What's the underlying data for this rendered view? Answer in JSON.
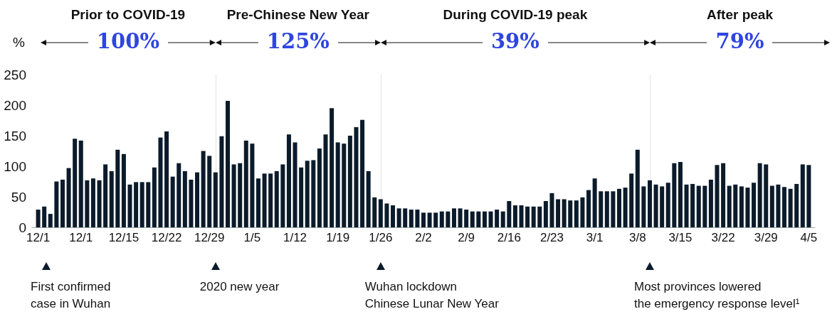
{
  "chart_data": {
    "type": "bar",
    "ylabel": "%",
    "color": "#0b1b2b",
    "grid": false,
    "ylim": [
      0,
      250
    ],
    "yticks": [
      0,
      50,
      100,
      150,
      200,
      250
    ],
    "xlim": [
      "2019-11-30",
      "2020-04-06"
    ],
    "xticks": [
      {
        "value": "2019-12-01",
        "label": "12/1"
      },
      {
        "value": "2019-12-08",
        "label": "12/1"
      },
      {
        "value": "2019-12-15",
        "label": "12/15"
      },
      {
        "value": "2019-12-22",
        "label": "12/22"
      },
      {
        "value": "2019-12-29",
        "label": "12/29"
      },
      {
        "value": "2020-01-05",
        "label": "1/5"
      },
      {
        "value": "2020-01-12",
        "label": "1/12"
      },
      {
        "value": "2020-01-19",
        "label": "1/19"
      },
      {
        "value": "2020-01-26",
        "label": "1/26"
      },
      {
        "value": "2020-02-02",
        "label": "2/2"
      },
      {
        "value": "2020-02-09",
        "label": "2/9"
      },
      {
        "value": "2020-02-16",
        "label": "2/16"
      },
      {
        "value": "2020-02-23",
        "label": "2/23"
      },
      {
        "value": "2020-03-01",
        "label": "3/1"
      },
      {
        "value": "2020-03-08",
        "label": "3/8"
      },
      {
        "value": "2020-03-15",
        "label": "3/15"
      },
      {
        "value": "2020-03-22",
        "label": "3/22"
      },
      {
        "value": "2020-03-29",
        "label": "3/29"
      },
      {
        "value": "2020-04-05",
        "label": "4/5"
      }
    ],
    "x": [
      "2019-12-01",
      "2019-12-02",
      "2019-12-03",
      "2019-12-04",
      "2019-12-05",
      "2019-12-06",
      "2019-12-07",
      "2019-12-08",
      "2019-12-09",
      "2019-12-10",
      "2019-12-11",
      "2019-12-12",
      "2019-12-13",
      "2019-12-14",
      "2019-12-15",
      "2019-12-16",
      "2019-12-17",
      "2019-12-18",
      "2019-12-19",
      "2019-12-20",
      "2019-12-21",
      "2019-12-22",
      "2019-12-23",
      "2019-12-24",
      "2019-12-25",
      "2019-12-26",
      "2019-12-27",
      "2019-12-28",
      "2019-12-29",
      "2019-12-30",
      "2019-12-31",
      "2020-01-01",
      "2020-01-02",
      "2020-01-03",
      "2020-01-04",
      "2020-01-05",
      "2020-01-06",
      "2020-01-07",
      "2020-01-08",
      "2020-01-09",
      "2020-01-10",
      "2020-01-11",
      "2020-01-12",
      "2020-01-13",
      "2020-01-14",
      "2020-01-15",
      "2020-01-16",
      "2020-01-17",
      "2020-01-18",
      "2020-01-19",
      "2020-01-20",
      "2020-01-21",
      "2020-01-22",
      "2020-01-23",
      "2020-01-24",
      "2020-01-25",
      "2020-01-26",
      "2020-01-27",
      "2020-01-28",
      "2020-01-29",
      "2020-01-30",
      "2020-01-31",
      "2020-02-01",
      "2020-02-02",
      "2020-02-03",
      "2020-02-04",
      "2020-02-05",
      "2020-02-06",
      "2020-02-07",
      "2020-02-08",
      "2020-02-09",
      "2020-02-10",
      "2020-02-11",
      "2020-02-12",
      "2020-02-13",
      "2020-02-14",
      "2020-02-15",
      "2020-02-16",
      "2020-02-17",
      "2020-02-18",
      "2020-02-19",
      "2020-02-20",
      "2020-02-21",
      "2020-02-22",
      "2020-02-23",
      "2020-02-24",
      "2020-02-25",
      "2020-02-26",
      "2020-02-27",
      "2020-02-28",
      "2020-02-29",
      "2020-03-01",
      "2020-03-02",
      "2020-03-03",
      "2020-03-04",
      "2020-03-05",
      "2020-03-06",
      "2020-03-07",
      "2020-03-08",
      "2020-03-09",
      "2020-03-10",
      "2020-03-11",
      "2020-03-12",
      "2020-03-13",
      "2020-03-14",
      "2020-03-15",
      "2020-03-16",
      "2020-03-17",
      "2020-03-18",
      "2020-03-19",
      "2020-03-20",
      "2020-03-21",
      "2020-03-22",
      "2020-03-23",
      "2020-03-24",
      "2020-03-25",
      "2020-03-26",
      "2020-03-27",
      "2020-03-28",
      "2020-03-29",
      "2020-03-30",
      "2020-03-31",
      "2020-04-01",
      "2020-04-02",
      "2020-04-03",
      "2020-04-04",
      "2020-04-05"
    ],
    "values": [
      29,
      34,
      22,
      75,
      78,
      97,
      145,
      142,
      77,
      80,
      77,
      103,
      92,
      127,
      120,
      70,
      74,
      74,
      74,
      98,
      147,
      157,
      83,
      105,
      92,
      78,
      90,
      125,
      117,
      90,
      149,
      207,
      103,
      105,
      142,
      137,
      80,
      88,
      88,
      92,
      103,
      152,
      139,
      98,
      109,
      110,
      129,
      152,
      195,
      139,
      137,
      150,
      164,
      176,
      92,
      49,
      46,
      39,
      36,
      31,
      31,
      29,
      29,
      24,
      24,
      24,
      26,
      26,
      31,
      31,
      29,
      26,
      26,
      26,
      26,
      29,
      26,
      43,
      36,
      36,
      34,
      34,
      34,
      43,
      56,
      46,
      46,
      44,
      44,
      49,
      61,
      80,
      59,
      59,
      59,
      63,
      65,
      88,
      127,
      67,
      77,
      70,
      67,
      73,
      105,
      107,
      70,
      71,
      68,
      68,
      78,
      102,
      105,
      68,
      70,
      67,
      65,
      73,
      105,
      103,
      68,
      70,
      66,
      63,
      71,
      103,
      102
    ],
    "ref_lines": [
      {
        "axis": "x",
        "value": "2019-12-30",
        "color": "#e2e2e2"
      },
      {
        "axis": "x",
        "value": "2020-01-26",
        "color": "#e2e2e2"
      },
      {
        "axis": "x",
        "value": "2020-03-10",
        "color": "#e2e2e2"
      }
    ],
    "annotations": [
      "Prior to COVID-19",
      "100%",
      "Pre-Chinese New Year",
      "125%",
      "During COVID-19 peak",
      "39%",
      "After peak",
      "79%",
      "First confirmed\ncase in Wuhan",
      "2020 new year",
      "Wuhan lockdown\nChinese Lunar New Year",
      "Most provinces lowered\nthe emergency response level¹"
    ]
  }
}
